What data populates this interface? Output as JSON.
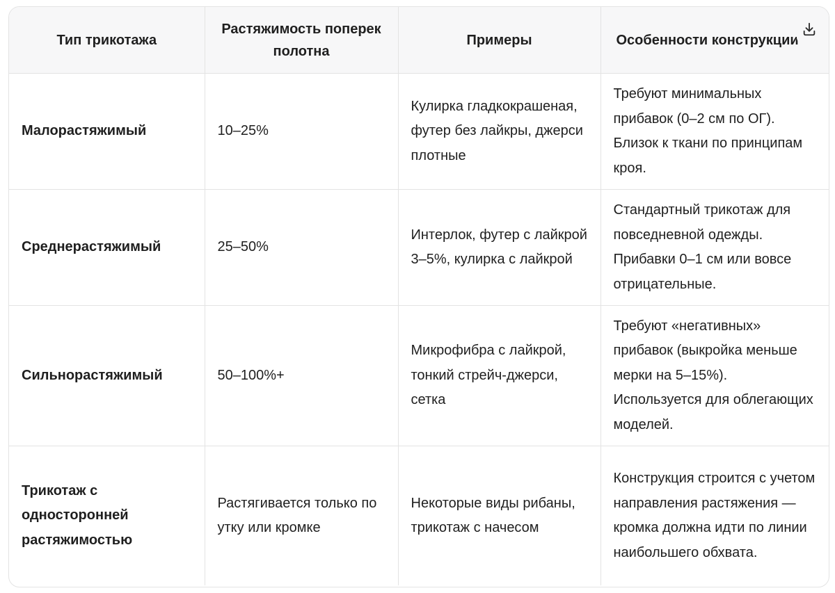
{
  "table": {
    "headers": [
      "Тип трикотажа",
      "Растяжимость поперек полотна",
      "Примеры",
      "Особенности конструкции"
    ],
    "rows": [
      {
        "type": "Малорастяжимый",
        "stretch": "10–25%",
        "examples": "Кулирка гладкокрашеная, футер без лайкры, джерси плотные",
        "features": "Требуют минимальных прибавок (0–2 см по ОГ). Близок к ткани по принципам кроя."
      },
      {
        "type": "Среднерастяжимый",
        "stretch": "25–50%",
        "examples": "Интерлок, футер с лайкрой 3–5%, кулирка с лайкрой",
        "features": "Стандартный трикотаж для повседневной одежды. Прибавки 0–1 см или вовсе отрицательные."
      },
      {
        "type": "Сильнорастяжимый",
        "stretch": "50–100%+",
        "examples": "Микрофибра с лайкрой, тонкий стрейч-джерси, сетка",
        "features": "Требуют «негативных» прибавок (выкройка меньше мерки на 5–15%). Используется для облегающих моделей."
      },
      {
        "type": "Трикотаж с односторонней растяжимостью",
        "stretch": "Растягивается только по утку или кромке",
        "examples": "Некоторые виды рибаны, трикотаж с начесом",
        "features": "Конструкция строится с учетом направления растяжения — кромка должна идти по линии наибольшего обхвата."
      }
    ]
  },
  "download_button": {
    "icon": "download-icon"
  }
}
